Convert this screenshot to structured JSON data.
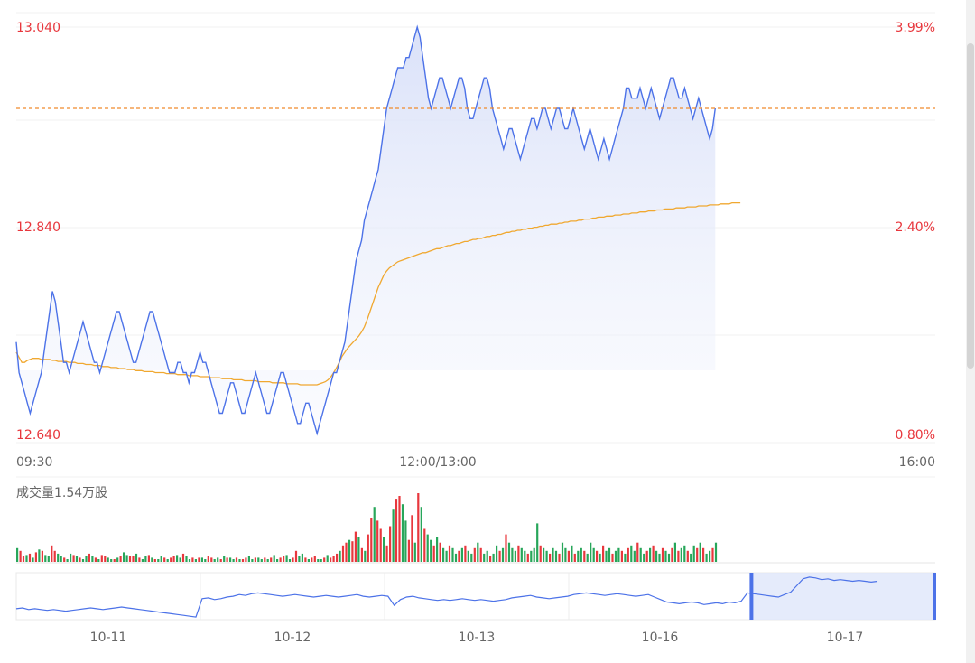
{
  "chart_data": [
    {
      "type": "line",
      "title": "",
      "x_ticks": [
        "09:30",
        "12:00/13:00",
        "16:00"
      ],
      "y_left_ticks": [
        "13.040",
        "12.840",
        "12.640"
      ],
      "y_right_ticks": [
        "3.99%",
        "2.40%",
        "0.80%"
      ],
      "ylim": [
        12.64,
        13.04
      ],
      "reference_price": 12.96,
      "series": [
        {
          "values": [
            12.73,
            12.7,
            12.69,
            12.68,
            12.67,
            12.66,
            12.67,
            12.68,
            12.69,
            12.7,
            12.72,
            12.74,
            12.76,
            12.78,
            12.77,
            12.75,
            12.73,
            12.71,
            12.71,
            12.7,
            12.71,
            12.72,
            12.73,
            12.74,
            12.75,
            12.74,
            12.73,
            12.72,
            12.71,
            12.71,
            12.7,
            12.71,
            12.72,
            12.73,
            12.74,
            12.75,
            12.76,
            12.76,
            12.75,
            12.74,
            12.73,
            12.72,
            12.71,
            12.71,
            12.72,
            12.73,
            12.74,
            12.75,
            12.76,
            12.76,
            12.75,
            12.74,
            12.73,
            12.72,
            12.71,
            12.7,
            12.7,
            12.7,
            12.71,
            12.71,
            12.7,
            12.7,
            12.69,
            12.7,
            12.7,
            12.71,
            12.72,
            12.71,
            12.71,
            12.7,
            12.69,
            12.68,
            12.67,
            12.66,
            12.66,
            12.67,
            12.68,
            12.69,
            12.69,
            12.68,
            12.67,
            12.66,
            12.66,
            12.67,
            12.68,
            12.69,
            12.7,
            12.69,
            12.68,
            12.67,
            12.66,
            12.66,
            12.67,
            12.68,
            12.69,
            12.7,
            12.7,
            12.69,
            12.68,
            12.67,
            12.66,
            12.65,
            12.65,
            12.66,
            12.67,
            12.67,
            12.66,
            12.65,
            12.64,
            12.65,
            12.66,
            12.67,
            12.68,
            12.69,
            12.7,
            12.7,
            12.71,
            12.72,
            12.73,
            12.75,
            12.77,
            12.79,
            12.81,
            12.82,
            12.83,
            12.85,
            12.86,
            12.87,
            12.88,
            12.89,
            12.9,
            12.92,
            12.94,
            12.96,
            12.97,
            12.98,
            12.99,
            13.0,
            13.0,
            13.0,
            13.01,
            13.01,
            13.02,
            13.03,
            13.04,
            13.03,
            13.01,
            12.99,
            12.97,
            12.96,
            12.97,
            12.98,
            12.99,
            12.99,
            12.98,
            12.97,
            12.96,
            12.97,
            12.98,
            12.99,
            12.99,
            12.98,
            12.96,
            12.95,
            12.95,
            12.96,
            12.97,
            12.98,
            12.99,
            12.99,
            12.98,
            12.96,
            12.95,
            12.94,
            12.93,
            12.92,
            12.93,
            12.94,
            12.94,
            12.93,
            12.92,
            12.91,
            12.92,
            12.93,
            12.94,
            12.95,
            12.95,
            12.94,
            12.95,
            12.96,
            12.96,
            12.95,
            12.94,
            12.95,
            12.96,
            12.96,
            12.95,
            12.94,
            12.94,
            12.95,
            12.96,
            12.95,
            12.94,
            12.93,
            12.92,
            12.93,
            12.94,
            12.93,
            12.92,
            12.91,
            12.92,
            12.93,
            12.92,
            12.91,
            12.92,
            12.93,
            12.94,
            12.95,
            12.96,
            12.98,
            12.98,
            12.97,
            12.97,
            12.97,
            12.98,
            12.97,
            12.96,
            12.97,
            12.98,
            12.97,
            12.96,
            12.95,
            12.96,
            12.97,
            12.98,
            12.99,
            12.99,
            12.98,
            12.97,
            12.97,
            12.98,
            12.97,
            12.96,
            12.95,
            12.96,
            12.97,
            12.96,
            12.95,
            12.94,
            12.93,
            12.94,
            12.96
          ]
        },
        {
          "values": [
            12.72,
            12.715,
            12.71,
            12.71,
            12.712,
            12.713,
            12.714,
            12.714,
            12.714,
            12.713,
            12.713,
            12.713,
            12.713,
            12.712,
            12.712,
            12.711,
            12.711,
            12.711,
            12.711,
            12.71,
            12.71,
            12.71,
            12.709,
            12.709,
            12.709,
            12.708,
            12.708,
            12.708,
            12.707,
            12.707,
            12.707,
            12.706,
            12.706,
            12.706,
            12.705,
            12.705,
            12.705,
            12.704,
            12.704,
            12.704,
            12.703,
            12.703,
            12.703,
            12.702,
            12.702,
            12.702,
            12.701,
            12.701,
            12.701,
            12.701,
            12.7,
            12.7,
            12.7,
            12.7,
            12.699,
            12.699,
            12.699,
            12.699,
            12.698,
            12.698,
            12.698,
            12.698,
            12.697,
            12.697,
            12.697,
            12.697,
            12.696,
            12.696,
            12.696,
            12.696,
            12.695,
            12.695,
            12.695,
            12.695,
            12.694,
            12.694,
            12.694,
            12.694,
            12.693,
            12.693,
            12.693,
            12.693,
            12.692,
            12.692,
            12.692,
            12.692,
            12.692,
            12.691,
            12.691,
            12.691,
            12.691,
            12.691,
            12.69,
            12.69,
            12.69,
            12.69,
            12.69,
            12.689,
            12.689,
            12.689,
            12.689,
            12.689,
            12.688,
            12.688,
            12.688,
            12.688,
            12.688,
            12.688,
            12.688,
            12.689,
            12.69,
            12.691,
            12.693,
            12.696,
            12.7,
            12.705,
            12.71,
            12.716,
            12.72,
            12.724,
            12.727,
            12.73,
            12.733,
            12.736,
            12.74,
            12.745,
            12.752,
            12.76,
            12.768,
            12.776,
            12.784,
            12.79,
            12.796,
            12.8,
            12.803,
            12.805,
            12.807,
            12.809,
            12.81,
            12.811,
            12.812,
            12.813,
            12.814,
            12.815,
            12.816,
            12.817,
            12.818,
            12.818,
            12.819,
            12.82,
            12.821,
            12.822,
            12.822,
            12.823,
            12.824,
            12.825,
            12.825,
            12.826,
            12.827,
            12.827,
            12.828,
            12.829,
            12.829,
            12.83,
            12.831,
            12.831,
            12.832,
            12.832,
            12.833,
            12.834,
            12.834,
            12.835,
            12.835,
            12.836,
            12.836,
            12.837,
            12.838,
            12.838,
            12.839,
            12.839,
            12.84,
            12.84,
            12.841,
            12.841,
            12.842,
            12.842,
            12.843,
            12.843,
            12.844,
            12.844,
            12.845,
            12.845,
            12.846,
            12.846,
            12.846,
            12.847,
            12.847,
            12.848,
            12.848,
            12.849,
            12.849,
            12.849,
            12.85,
            12.85,
            12.851,
            12.851,
            12.851,
            12.852,
            12.852,
            12.853,
            12.853,
            12.853,
            12.854,
            12.854,
            12.854,
            12.855,
            12.855,
            12.855,
            12.856,
            12.856,
            12.856,
            12.857,
            12.857,
            12.857,
            12.858,
            12.858,
            12.858,
            12.859,
            12.859,
            12.859,
            12.86,
            12.86,
            12.86,
            12.861,
            12.861,
            12.861,
            12.861,
            12.862,
            12.862,
            12.862,
            12.862,
            12.863,
            12.863,
            12.863,
            12.863,
            12.864,
            12.864,
            12.864,
            12.864,
            12.865,
            12.865,
            12.865,
            12.865,
            12.866,
            12.866,
            12.866,
            12.866,
            12.867,
            12.867,
            12.867,
            12.867
          ]
        }
      ],
      "colors": {
        "price": "#4c72e8",
        "avg": "#f0a830",
        "reference": "#f08a2c",
        "up": "#e8373d",
        "down": "#27a65a"
      }
    },
    {
      "type": "bar",
      "title": "成交量1.54万股",
      "values": [
        10,
        8,
        4,
        5,
        6,
        3,
        7,
        9,
        8,
        5,
        4,
        12,
        8,
        6,
        4,
        3,
        2,
        6,
        5,
        4,
        3,
        2,
        4,
        6,
        4,
        3,
        2,
        5,
        4,
        3,
        2,
        2,
        3,
        4,
        7,
        5,
        4,
        4,
        6,
        3,
        2,
        4,
        5,
        3,
        2,
        2,
        4,
        3,
        2,
        3,
        4,
        5,
        3,
        6,
        4,
        2,
        3,
        2,
        3,
        3,
        2,
        4,
        3,
        2,
        3,
        2,
        4,
        3,
        3,
        2,
        3,
        2,
        2,
        3,
        4,
        2,
        3,
        3,
        2,
        3,
        2,
        3,
        5,
        2,
        3,
        4,
        5,
        2,
        3,
        8,
        4,
        6,
        3,
        2,
        3,
        4,
        2,
        2,
        3,
        5,
        3,
        4,
        6,
        8,
        12,
        14,
        16,
        15,
        22,
        18,
        10,
        8,
        20,
        32,
        40,
        30,
        24,
        18,
        12,
        26,
        38,
        46,
        48,
        42,
        30,
        16,
        34,
        14,
        50,
        40,
        24,
        20,
        16,
        12,
        18,
        14,
        10,
        8,
        12,
        10,
        6,
        8,
        10,
        12,
        8,
        6,
        10,
        14,
        10,
        6,
        8,
        4,
        6,
        12,
        8,
        10,
        20,
        14,
        10,
        8,
        12,
        10,
        8,
        6,
        8,
        10,
        28,
        12,
        10,
        8,
        6,
        10,
        8,
        6,
        14,
        10,
        8,
        12,
        6,
        8,
        10,
        8,
        6,
        14,
        10,
        8,
        6,
        12,
        8,
        10,
        6,
        8,
        10,
        8,
        6,
        10,
        12,
        8,
        14,
        10,
        6,
        8,
        10,
        12,
        8,
        6,
        10,
        8,
        6,
        10,
        14,
        8,
        10,
        12,
        8,
        6,
        12,
        10,
        14,
        10,
        6,
        8,
        10,
        14
      ],
      "bar_up_flags": [
        0,
        1,
        1,
        0,
        1,
        0,
        1,
        0,
        1,
        0,
        0,
        1,
        1,
        0,
        0,
        1,
        0,
        0,
        1,
        0,
        1,
        0,
        0,
        1,
        0,
        1,
        0,
        1,
        1,
        0,
        0,
        1,
        0,
        1,
        0,
        0,
        1,
        1,
        0,
        1,
        0,
        0,
        1,
        0,
        1,
        0,
        0,
        1,
        0,
        1,
        1,
        0,
        0,
        1,
        0,
        0,
        1,
        0,
        1,
        0,
        0,
        1,
        1,
        0,
        0,
        1,
        0,
        1,
        0,
        0,
        1,
        0,
        1,
        1,
        0,
        0,
        1,
        0,
        0,
        1,
        0,
        1,
        0,
        0,
        1,
        1,
        0,
        0,
        1,
        1,
        0,
        0,
        1,
        0,
        1,
        1,
        0,
        0,
        1,
        0,
        1,
        1,
        1,
        0,
        1,
        1,
        0,
        1,
        1,
        0,
        1,
        0,
        1,
        1,
        0,
        1,
        1,
        0,
        1,
        1,
        0,
        1,
        1,
        0,
        0,
        1,
        1,
        0,
        1,
        0,
        1,
        0,
        0,
        1,
        0,
        1,
        0,
        0,
        1,
        0,
        0,
        1,
        0,
        1,
        0,
        0,
        1,
        0,
        1,
        0,
        0,
        1,
        0,
        0,
        1,
        0,
        1,
        0,
        0,
        0,
        1,
        0,
        0,
        1,
        0,
        0,
        0,
        1,
        0,
        0,
        1,
        0,
        0,
        1,
        0,
        0,
        1,
        0,
        1,
        0,
        0,
        1,
        0,
        0,
        0,
        1,
        0,
        1,
        0,
        0,
        1,
        0,
        0,
        1,
        0,
        1,
        0,
        0,
        1,
        0,
        0,
        1,
        0,
        1,
        0,
        0,
        1,
        0,
        0,
        1,
        0,
        1,
        0,
        0,
        1,
        0,
        0,
        1,
        0,
        1,
        0,
        0,
        1,
        0,
        1
      ]
    },
    {
      "type": "line",
      "title": "",
      "x_ticks": [
        "10-11",
        "10-12",
        "10-13",
        "10-16",
        "10-17"
      ],
      "ylim": [
        0,
        1
      ],
      "series": [
        {
          "values": [
            0.22,
            0.24,
            0.2,
            0.22,
            0.2,
            0.18,
            0.2,
            0.18,
            0.16,
            0.18,
            0.2,
            0.22,
            0.24,
            0.22,
            0.2,
            0.22,
            0.24,
            0.26,
            0.24,
            0.22,
            0.2,
            0.18,
            0.16,
            0.14,
            0.12,
            0.1,
            0.08,
            0.06,
            0.04,
            0.02,
            0.46,
            0.48,
            0.44,
            0.46,
            0.5,
            0.52,
            0.56,
            0.54,
            0.58,
            0.6,
            0.58,
            0.56,
            0.54,
            0.52,
            0.54,
            0.56,
            0.54,
            0.52,
            0.5,
            0.52,
            0.54,
            0.52,
            0.5,
            0.52,
            0.54,
            0.56,
            0.52,
            0.5,
            0.52,
            0.54,
            0.52,
            0.3,
            0.44,
            0.5,
            0.52,
            0.48,
            0.46,
            0.44,
            0.42,
            0.44,
            0.42,
            0.44,
            0.46,
            0.44,
            0.42,
            0.44,
            0.42,
            0.4,
            0.42,
            0.44,
            0.48,
            0.5,
            0.52,
            0.54,
            0.5,
            0.48,
            0.46,
            0.48,
            0.5,
            0.52,
            0.56,
            0.58,
            0.6,
            0.58,
            0.56,
            0.54,
            0.56,
            0.58,
            0.56,
            0.54,
            0.52,
            0.54,
            0.56,
            0.5,
            0.44,
            0.38,
            0.36,
            0.34,
            0.36,
            0.38,
            0.36,
            0.32,
            0.34,
            0.36,
            0.34,
            0.38,
            0.36,
            0.4,
            0.6,
            0.58,
            0.56,
            0.54,
            0.52,
            0.5,
            0.56,
            0.62,
            0.78,
            0.94,
            0.98,
            0.96,
            0.92,
            0.94,
            0.9,
            0.92,
            0.9,
            0.88,
            0.9,
            0.88,
            0.86,
            0.88
          ]
        }
      ],
      "selection_range": [
        0.8,
        1.0
      ]
    }
  ]
}
